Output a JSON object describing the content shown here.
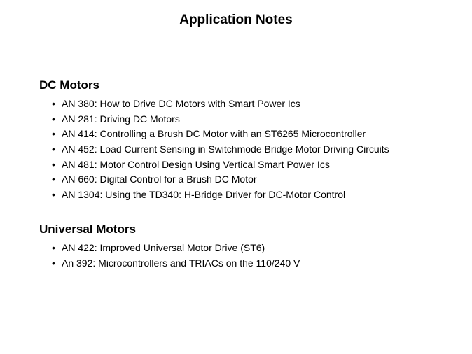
{
  "title": "Application Notes",
  "sections": [
    {
      "heading": "DC Motors",
      "items": [
        "AN 380: How to Drive DC Motors with Smart Power Ics",
        "AN 281: Driving DC Motors",
        "AN 414: Controlling a Brush DC Motor with an ST6265 Microcontroller",
        "AN 452: Load Current Sensing in Switchmode Bridge Motor Driving Circuits",
        "AN 481: Motor Control Design Using Vertical Smart Power Ics",
        "AN 660: Digital Control for a Brush DC Motor",
        "AN 1304: Using the TD340: H-Bridge Driver for DC-Motor Control"
      ]
    },
    {
      "heading": "Universal Motors",
      "items": [
        "AN 422: Improved Universal Motor Drive (ST6)",
        "An 392: Microcontrollers and TRIACs on the 110/240 V"
      ]
    }
  ],
  "colors": {
    "background": "#ffffff",
    "text": "#000000"
  },
  "typography": {
    "title_fontsize": 19,
    "heading_fontsize": 17,
    "item_fontsize": 14,
    "font_family": "Arial, Helvetica, sans-serif"
  }
}
